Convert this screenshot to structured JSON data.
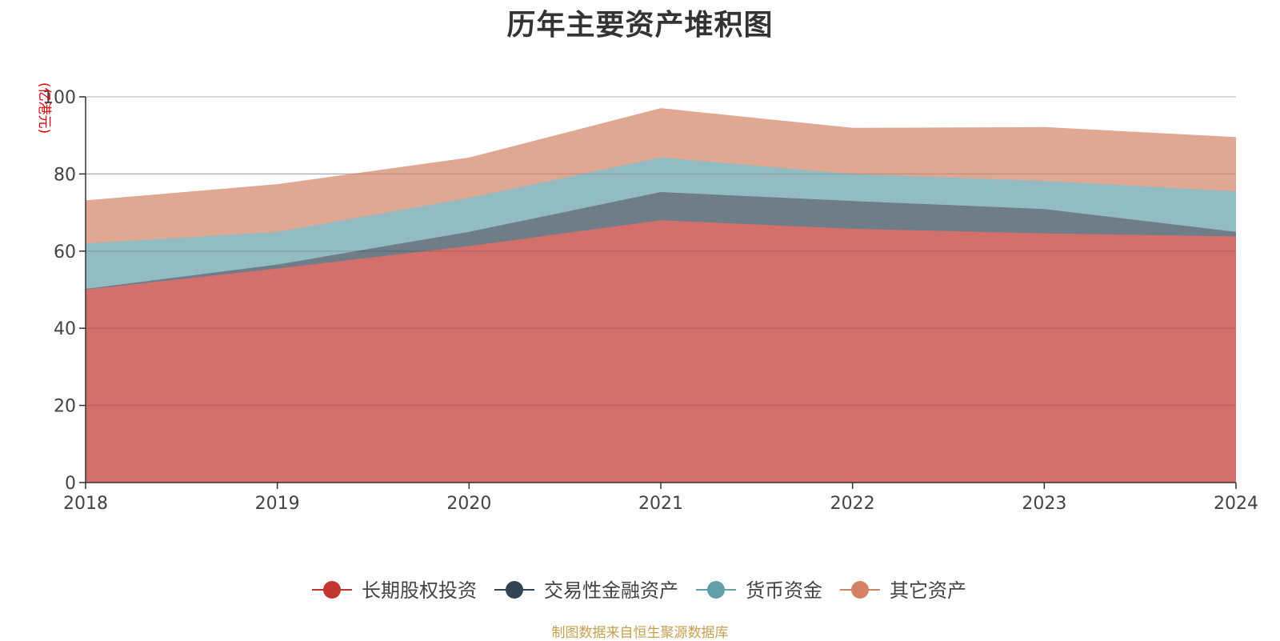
{
  "chart_data": {
    "type": "area",
    "stacked": true,
    "title": "历年主要资产堆积图",
    "ylabel": "(亿港元)",
    "xlabel": "",
    "categories": [
      "2018",
      "2019",
      "2020",
      "2021",
      "2022",
      "2023",
      "2024"
    ],
    "ylim": [
      0,
      100
    ],
    "yticks": [
      0,
      20,
      40,
      60,
      80,
      100
    ],
    "grid": true,
    "legend_position": "bottom",
    "series": [
      {
        "name": "长期股权投资",
        "color": "#c23531",
        "fill": "#d4706c",
        "values": [
          50.0,
          55.5,
          61.3,
          68.0,
          65.8,
          64.6,
          63.8
        ]
      },
      {
        "name": "交易性金融资产",
        "color": "#2f4554",
        "fill": "#6e7d88",
        "values": [
          0.2,
          1.0,
          3.7,
          7.3,
          7.2,
          6.3,
          1.2
        ]
      },
      {
        "name": "货币资金",
        "color": "#61a0a8",
        "fill": "#93bcc2",
        "values": [
          11.8,
          8.5,
          8.8,
          9.0,
          7.0,
          7.3,
          10.5
        ]
      },
      {
        "name": "其它资产",
        "color": "#d48265",
        "fill": "#e0a892",
        "values": [
          11.0,
          12.2,
          10.3,
          12.6,
          11.8,
          13.8,
          13.9
        ]
      }
    ]
  },
  "source_note": "制图数据来自恒生聚源数据库"
}
